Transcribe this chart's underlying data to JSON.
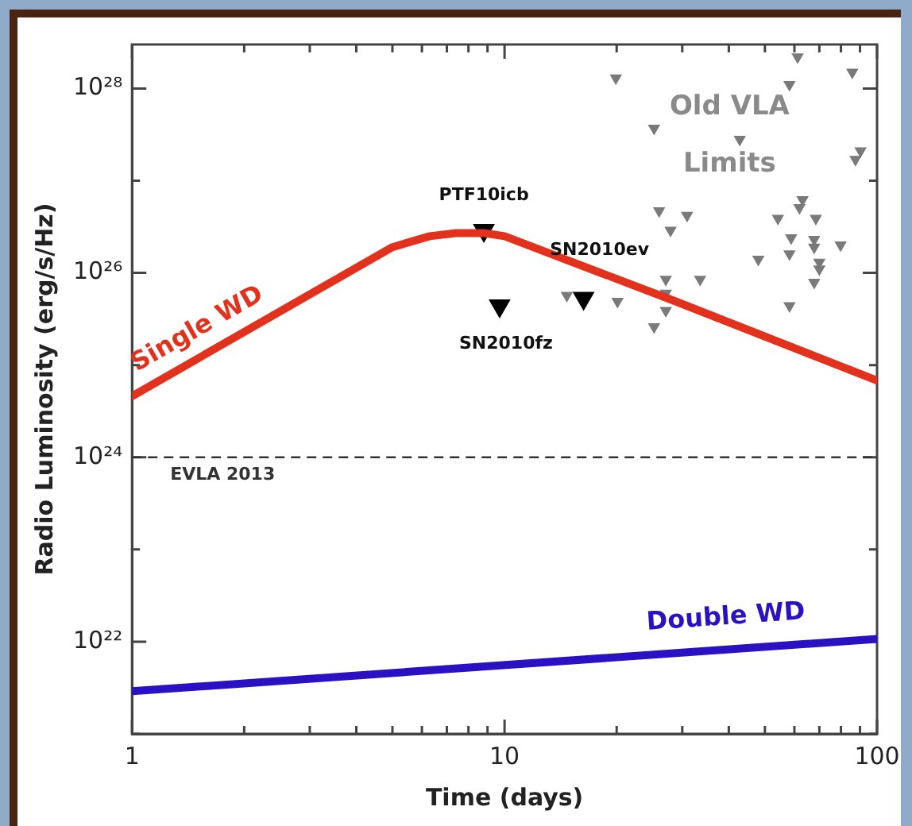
{
  "chart_data": {
    "type": "scatter",
    "xlabel": "Time (days)",
    "ylabel": "Radio Luminosity (erg/s/Hz)",
    "log": "xy",
    "grid": false,
    "xlim": [
      1,
      100
    ],
    "xticks": [
      1,
      {
        "value": 2,
        "label": null
      },
      {
        "value": 3,
        "label": null
      },
      {
        "value": 4,
        "label": null
      },
      {
        "value": 5,
        "label": null
      },
      {
        "value": 6,
        "label": null
      },
      {
        "value": 7,
        "label": null
      },
      {
        "value": 8,
        "label": null
      },
      {
        "value": 9,
        "label": null
      },
      10,
      {
        "value": 20,
        "label": null
      },
      {
        "value": 30,
        "label": null
      },
      {
        "value": 40,
        "label": null
      },
      {
        "value": 50,
        "label": null
      },
      {
        "value": 60,
        "label": null
      },
      {
        "value": 70,
        "label": null
      },
      {
        "value": 80,
        "label": null
      },
      {
        "value": 90,
        "label": null
      },
      100
    ],
    "ylim": [
      1e+21,
      3e+28
    ],
    "yticks": [
      {
        "value": 1e+21,
        "label": null
      },
      {
        "value": 1e+22,
        "label": "10²²"
      },
      {
        "value": 1e+23,
        "label": null
      },
      {
        "value": 1e+24,
        "label": "10²⁴"
      },
      {
        "value": 1e+25,
        "label": null
      },
      {
        "value": 1e+26,
        "label": "10²⁶"
      },
      {
        "value": 1e+27,
        "label": null
      },
      {
        "value": 1e+28,
        "label": "10²⁸"
      }
    ],
    "series": [
      {
        "name": "Single WD",
        "type": "line",
        "marker": "none",
        "color": "#e2321e",
        "x": [
          1,
          5,
          6.3,
          7.4,
          8.8,
          10,
          28.8,
          100
        ],
        "values": [
          4.6e+24,
          1.9e+26,
          2.5e+26,
          2.7e+26,
          2.7e+26,
          2.5e+26,
          4.9e+25,
          6.8e+24
        ]
      },
      {
        "name": "Double WD",
        "type": "line",
        "marker": "none",
        "color": "#2a12c4",
        "x": [
          1,
          100
        ],
        "values": [
          2.9e+21,
          1.07e+22
        ]
      },
      {
        "name": "Old VLA Limits",
        "marker": "triangle",
        "color": "#7a7a7a",
        "x": [
          19.9,
          25.2,
          42.8,
          61.2,
          58.2,
          85.8,
          90.3,
          87.5,
          63.1,
          61.9,
          54.2,
          68.5,
          26.0,
          30.9,
          27.9,
          58.8,
          67.8,
          67.8,
          79.8,
          48.0,
          58.2,
          70.0,
          67.8,
          33.5,
          27.1,
          27.1,
          20.1,
          14.7,
          58.2,
          27.1,
          25.2,
          70.0
        ],
        "values": [
          1.3e+28,
          3.7e+27,
          2.8e+27,
          2.2e+28,
          1.1e+28,
          1.5e+28,
          2.1e+27,
          1.7e+27,
          6.2e+26,
          5.1e+26,
          3.9e+26,
          3.9e+26,
          4.7e+26,
          4.2e+26,
          2.9e+26,
          2.4e+26,
          2.3e+26,
          1.9e+26,
          2e+26,
          1.4e+26,
          1.6e+26,
          1.1e+26,
          7.9e+25,
          8.5e+25,
          8.5e+25,
          6e+25,
          4.9e+25,
          5.7e+25,
          4.4e+25,
          3.9e+25,
          2.6e+25,
          1.3e+26
        ]
      },
      {
        "marker": "triangle",
        "color": "#000000",
        "x": [
          8.8,
          9.7,
          16.3
        ],
        "values": [
          2.9e+26,
          4.4e+25,
          5.3e+25
        ]
      }
    ],
    "ref_lines": [
      {
        "axis": "y",
        "value": 1e+24,
        "label": "EVLA 2013",
        "color": "#333333",
        "line_style": "dashed"
      }
    ],
    "annotations": [
      {
        "text": "PTF10icb",
        "x": 8.8,
        "y": 2.9e+26
      },
      {
        "text": "SN2010fz",
        "x": 9.7,
        "y": 4.4e+25
      },
      {
        "text": "SN2010ev",
        "x": 16.3,
        "y": 5.3e+25
      }
    ]
  }
}
